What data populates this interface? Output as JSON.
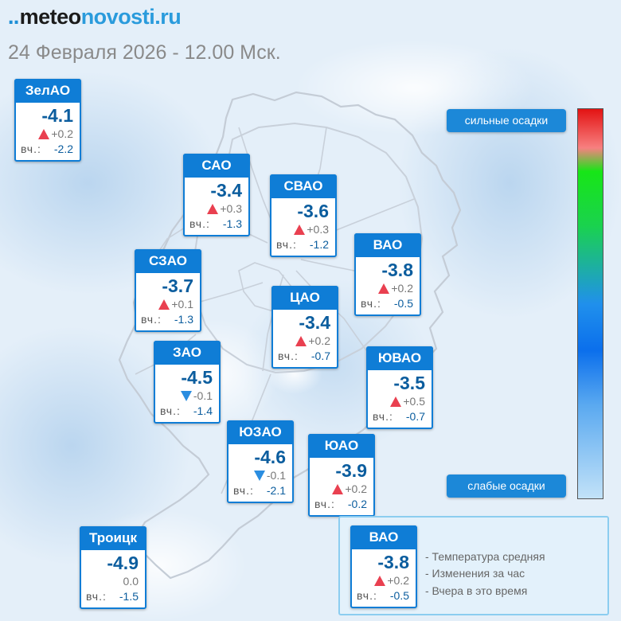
{
  "header": {
    "logo_prefix": "meteo",
    "logo_suffix": "novosti.ru",
    "date_line": "24 Февраля 2026 - 12.00 Мск."
  },
  "yest_label": "вч.:",
  "districts": [
    {
      "id": "zelao",
      "name": "ЗелАО",
      "temp": "-4.1",
      "delta": "+0.2",
      "trend": "up",
      "yesterday": "-2.2"
    },
    {
      "id": "sao",
      "name": "САО",
      "temp": "-3.4",
      "delta": "+0.3",
      "trend": "up",
      "yesterday": "-1.3"
    },
    {
      "id": "svao",
      "name": "СВАО",
      "temp": "-3.6",
      "delta": "+0.3",
      "trend": "up",
      "yesterday": "-1.2"
    },
    {
      "id": "szao",
      "name": "СЗАО",
      "temp": "-3.7",
      "delta": "+0.1",
      "trend": "up",
      "yesterday": "-1.3"
    },
    {
      "id": "vao",
      "name": "ВАО",
      "temp": "-3.8",
      "delta": "+0.2",
      "trend": "up",
      "yesterday": "-0.5"
    },
    {
      "id": "tsao",
      "name": "ЦАО",
      "temp": "-3.4",
      "delta": "+0.2",
      "trend": "up",
      "yesterday": "-0.7"
    },
    {
      "id": "zao",
      "name": "ЗАО",
      "temp": "-4.5",
      "delta": "-0.1",
      "trend": "down",
      "yesterday": "-1.4"
    },
    {
      "id": "yuvao",
      "name": "ЮВАО",
      "temp": "-3.5",
      "delta": "+0.5",
      "trend": "up",
      "yesterday": "-0.7"
    },
    {
      "id": "yuzao",
      "name": "ЮЗАО",
      "temp": "-4.6",
      "delta": "-0.1",
      "trend": "down",
      "yesterday": "-2.1"
    },
    {
      "id": "yuao",
      "name": "ЮАО",
      "temp": "-3.9",
      "delta": "+0.2",
      "trend": "up",
      "yesterday": "-0.2"
    },
    {
      "id": "troitsk",
      "name": "Троицк",
      "temp": "-4.9",
      "delta": "0.0",
      "trend": "none",
      "yesterday": "-1.5"
    }
  ],
  "scale": {
    "top_label": "сильные осадки",
    "bottom_label": "слабые осадки",
    "colors": [
      "#e31313",
      "#f78080",
      "#17e617",
      "#1ad24e",
      "#2090ec",
      "#0b6fec",
      "#5aa9f0",
      "#c2e2f8"
    ]
  },
  "legend": {
    "sample": {
      "name": "ВАО",
      "temp": "-3.8",
      "delta": "+0.2",
      "trend": "up",
      "yesterday": "-0.5"
    },
    "items": [
      "- Температура средняя",
      "- Изменения за час",
      "- Вчера в это время"
    ]
  },
  "colors": {
    "card_accent": "#0f7dd6",
    "temp_text": "#0b5d9e",
    "up_arrow": "#e94050",
    "down_arrow": "#2a8de0"
  }
}
